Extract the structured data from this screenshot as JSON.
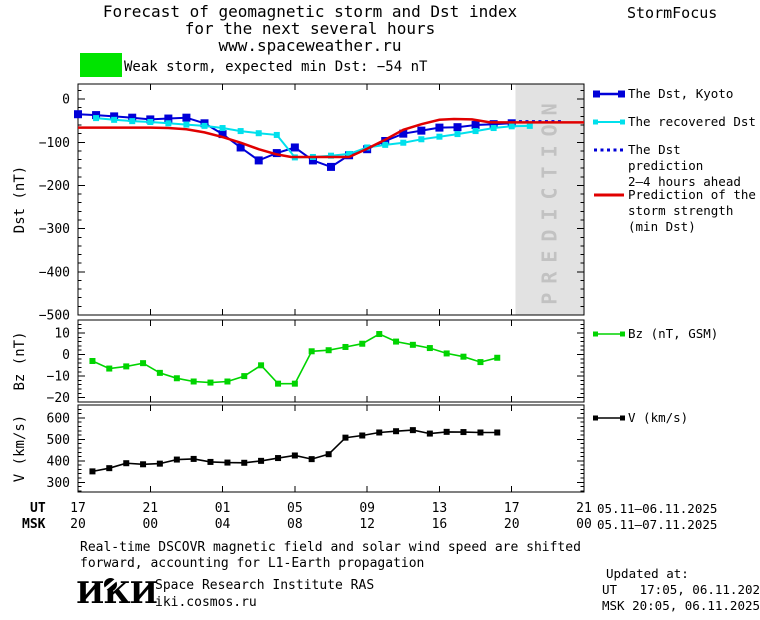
{
  "header": {
    "title_line1": "Forecast of geomagnetic storm and Dst index",
    "title_line2": "for the next several hours",
    "title_line3": "www.spaceweather.ru",
    "brand": "StormFocus"
  },
  "storm_banner": {
    "severity_color": "#00e400",
    "text": "Weak storm, expected min Dst: −54 nT"
  },
  "chart_data": [
    {
      "id": "dst",
      "type": "line",
      "ylabel": "Dst (nT)",
      "ylim": [
        35,
        -500
      ],
      "yticks_major": [
        0,
        -100,
        -200,
        -300,
        -400,
        -500
      ],
      "yminor_step": 20,
      "xlim_hours": [
        0,
        28
      ],
      "prediction_band": {
        "from_hour": 24.2,
        "to_hour": 28,
        "label": "PREDICTION",
        "fill": "#e2e2e2",
        "text_color": "#c2c2c2"
      },
      "series": [
        {
          "id": "dst_kyoto",
          "name": "The Dst, Kyoto",
          "color": "#0000d8",
          "width": 2,
          "marker": 8,
          "points": [
            [
              0,
              -35
            ],
            [
              1,
              -37
            ],
            [
              2,
              -40
            ],
            [
              3,
              -43
            ],
            [
              4,
              -47
            ],
            [
              5,
              -45
            ],
            [
              6,
              -43
            ],
            [
              7,
              -56
            ],
            [
              8,
              -81
            ],
            [
              9,
              -112
            ],
            [
              10,
              -142
            ],
            [
              11,
              -125
            ],
            [
              12,
              -112
            ],
            [
              13,
              -142
            ],
            [
              14,
              -157
            ],
            [
              15,
              -130
            ],
            [
              16,
              -116
            ],
            [
              17,
              -97
            ],
            [
              18,
              -80
            ],
            [
              19,
              -73
            ],
            [
              20,
              -66
            ],
            [
              21,
              -65
            ],
            [
              22,
              -60
            ],
            [
              23,
              -58
            ],
            [
              24,
              -56
            ]
          ]
        },
        {
          "id": "dst_recovered",
          "name": "The recovered Dst",
          "color": "#00e0ec",
          "width": 2,
          "marker": 6,
          "points": [
            [
              1,
              -44
            ],
            [
              2,
              -48
            ],
            [
              3,
              -51
            ],
            [
              4,
              -53
            ],
            [
              5,
              -56
            ],
            [
              6,
              -59
            ],
            [
              7,
              -62
            ],
            [
              8,
              -67
            ],
            [
              9,
              -74
            ],
            [
              10,
              -79
            ],
            [
              11,
              -83
            ],
            [
              12,
              -135
            ],
            [
              13,
              -134
            ],
            [
              14,
              -131
            ],
            [
              15,
              -127
            ],
            [
              16,
              -112
            ],
            [
              17,
              -106
            ],
            [
              18,
              -101
            ],
            [
              19,
              -93
            ],
            [
              20,
              -87
            ],
            [
              21,
              -81
            ],
            [
              22,
              -74
            ],
            [
              23,
              -67
            ],
            [
              24,
              -63
            ],
            [
              25,
              -62
            ]
          ]
        },
        {
          "id": "dst_prediction",
          "name": "The Dst prediction 2–4 hours ahead",
          "color": "#0000d8",
          "width": 3,
          "style": "dotted",
          "points": [
            [
              24.4,
              -52
            ],
            [
              26.8,
              -52
            ]
          ]
        },
        {
          "id": "storm_strength_prediction",
          "name": "Prediction of the storm strength (min Dst)",
          "color": "#e00000",
          "width": 2.5,
          "points": [
            [
              0,
              -66
            ],
            [
              4,
              -66
            ],
            [
              5,
              -67
            ],
            [
              6,
              -70
            ],
            [
              7,
              -77
            ],
            [
              8,
              -88
            ],
            [
              9,
              -101
            ],
            [
              10,
              -116
            ],
            [
              11,
              -128
            ],
            [
              11.8,
              -134
            ],
            [
              15,
              -134
            ],
            [
              16,
              -115
            ],
            [
              17,
              -94
            ],
            [
              18,
              -71
            ],
            [
              19,
              -58
            ],
            [
              20,
              -48
            ],
            [
              20.8,
              -46
            ],
            [
              21.8,
              -47
            ],
            [
              22.8,
              -54
            ],
            [
              28,
              -54
            ]
          ]
        }
      ]
    },
    {
      "id": "bz",
      "type": "line",
      "ylabel": "Bz (nT)",
      "ylim": [
        16,
        -22
      ],
      "yticks_major": [
        10,
        0,
        -10,
        -20
      ],
      "yminor_step": 2,
      "xlim_hours": [
        0,
        28
      ],
      "series": [
        {
          "id": "bz_gsm",
          "name": "Bz (nT, GSM)",
          "color": "#00d400",
          "width": 1.6,
          "marker": 6,
          "points": [
            [
              0.8,
              -3
            ],
            [
              1.73,
              -6.5
            ],
            [
              2.67,
              -5.5
            ],
            [
              3.6,
              -4
            ],
            [
              4.53,
              -8.5
            ],
            [
              5.47,
              -11
            ],
            [
              6.4,
              -12.5
            ],
            [
              7.33,
              -13
            ],
            [
              8.27,
              -12.5
            ],
            [
              9.2,
              -10
            ],
            [
              10.13,
              -5
            ],
            [
              11.07,
              -13.5
            ],
            [
              12,
              -13.5
            ],
            [
              12.93,
              1.5
            ],
            [
              13.87,
              2
            ],
            [
              14.8,
              3.5
            ],
            [
              15.73,
              5
            ],
            [
              16.67,
              9.5
            ],
            [
              17.6,
              6
            ],
            [
              18.53,
              4.5
            ],
            [
              19.47,
              3
            ],
            [
              20.4,
              0.5
            ],
            [
              21.33,
              -1
            ],
            [
              22.27,
              -3.5
            ],
            [
              23.2,
              -1.5
            ]
          ]
        }
      ]
    },
    {
      "id": "v",
      "type": "line",
      "ylabel": "V (km/s)",
      "ylim": [
        660,
        255
      ],
      "yticks_major": [
        600,
        500,
        400,
        300
      ],
      "yminor_step": 20,
      "xlim_hours": [
        0,
        28
      ],
      "series": [
        {
          "id": "solar_wind_speed",
          "name": "V (km/s)",
          "color": "#000000",
          "width": 1.6,
          "marker": 6,
          "points": [
            [
              0.8,
              351
            ],
            [
              1.73,
              366
            ],
            [
              2.67,
              389
            ],
            [
              3.6,
              384
            ],
            [
              4.53,
              387
            ],
            [
              5.47,
              406
            ],
            [
              6.4,
              409
            ],
            [
              7.33,
              395
            ],
            [
              8.27,
              392
            ],
            [
              9.2,
              391
            ],
            [
              10.13,
              400
            ],
            [
              11.07,
              413
            ],
            [
              12,
              425
            ],
            [
              12.93,
              408
            ],
            [
              13.87,
              431
            ],
            [
              14.8,
              508
            ],
            [
              15.73,
              518
            ],
            [
              16.67,
              532
            ],
            [
              17.6,
              538
            ],
            [
              18.53,
              543
            ],
            [
              19.47,
              527
            ],
            [
              20.4,
              535
            ],
            [
              21.33,
              534
            ],
            [
              22.27,
              532
            ],
            [
              23.2,
              532
            ]
          ]
        }
      ]
    }
  ],
  "xaxis": {
    "hours_span": 28,
    "major_tick_every_hours": 4,
    "row_labels": {
      "ut": "UT",
      "msk": "MSK"
    },
    "ut_labels": [
      "17",
      "21",
      "01",
      "05",
      "09",
      "13",
      "17",
      "21"
    ],
    "msk_labels": [
      "20",
      "00",
      "04",
      "08",
      "12",
      "16",
      "20",
      "00"
    ],
    "date_range_ut": "05.11–06.11.2025",
    "date_range_msk": "05.11–07.11.2025"
  },
  "legend": {
    "dst": [
      {
        "id": "kyoto",
        "lines": [
          "The Dst, Kyoto"
        ]
      },
      {
        "id": "recovered",
        "lines": [
          "The recovered Dst"
        ]
      },
      {
        "id": "prediction",
        "lines": [
          "The Dst prediction",
          "2–4 hours ahead"
        ]
      },
      {
        "id": "strength",
        "lines": [
          "Prediction of the",
          "storm strength",
          "(min Dst)"
        ]
      }
    ],
    "bz": {
      "label": "Bz (nT, GSM)"
    },
    "v": {
      "label": "V (km/s)"
    }
  },
  "footer": {
    "note_line1": "Real-time DSCOVR magnetic field and solar wind speed are shifted",
    "note_line2": "forward, accounting for L1-Earth propagation",
    "logo_text": "ИКИ",
    "institute": "Space Research Institute RAS",
    "website": "iki.cosmos.ru",
    "updated_label": "Updated at:",
    "updated_ut": "UT   17:05, 06.11.2025",
    "updated_msk": "MSK 20:05, 06.11.2025"
  }
}
